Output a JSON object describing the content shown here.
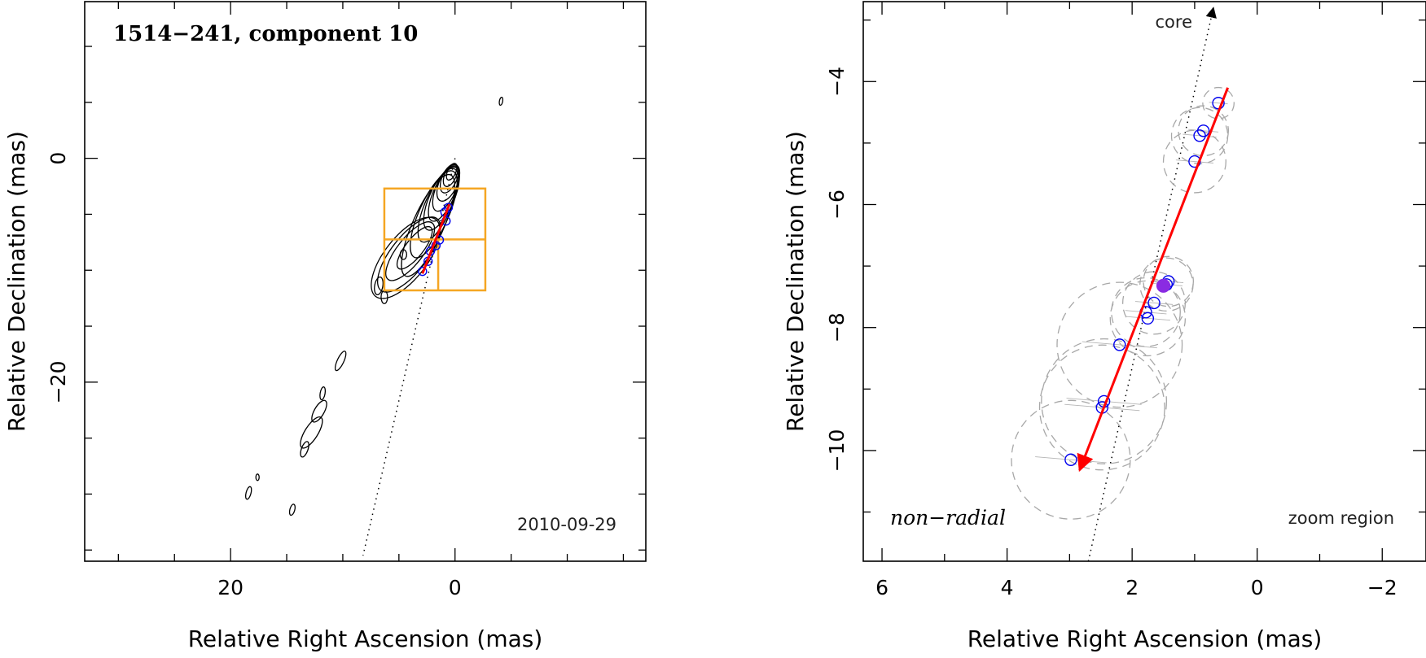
{
  "chart_data": [
    {
      "type": "scatter",
      "panel": "left",
      "title": "1514−241, component 10",
      "date_label": "2010-09-29",
      "xlabel": "Relative Right Ascension (mas)",
      "ylabel": "Relative Declination (mas)",
      "xlim": [
        33,
        -17
      ],
      "ylim": [
        -36,
        14
      ],
      "x_ticks": [
        20,
        0
      ],
      "x_tick_labels": [
        "20",
        "0"
      ],
      "y_ticks": [
        0,
        -20
      ],
      "y_tick_labels": [
        "0",
        "−20"
      ],
      "zoom_box": {
        "x": [
          6.3,
          -2.7
        ],
        "y": [
          -2.7,
          -11.8
        ]
      },
      "components": [
        {
          "x": 1.4,
          "y": -7.3
        },
        {
          "x": 0.8,
          "y": -5.6
        },
        {
          "x": 0.9,
          "y": -4.8
        },
        {
          "x": 1.7,
          "y": -7.8
        },
        {
          "x": 2.4,
          "y": -9.2
        },
        {
          "x": 2.9,
          "y": -10.1
        },
        {
          "x": 2.2,
          "y": -8.3
        },
        {
          "x": 0.6,
          "y": -4.4
        }
      ],
      "fit_line": [
        [
          0.5,
          -4.1
        ],
        [
          2.9,
          -10.3
        ]
      ],
      "core_direction": [
        [
          0,
          0
        ],
        [
          8.2,
          -35.5
        ]
      ]
    },
    {
      "type": "scatter",
      "panel": "right",
      "labels": {
        "core": "core",
        "mode": "non−radial",
        "region": "zoom region"
      },
      "xlabel": "Relative Right Ascension (mas)",
      "ylabel": "Relative Declination (mas)",
      "xlim": [
        6.3,
        -2.7
      ],
      "ylim": [
        -11.8,
        -2.7
      ],
      "x_ticks": [
        6,
        4,
        2,
        0,
        -2
      ],
      "x_tick_labels": [
        "6",
        "4",
        "2",
        "0",
        "−2"
      ],
      "y_ticks": [
        -4,
        -6,
        -8,
        -10
      ],
      "y_tick_labels": [
        "−4",
        "−6",
        "−8",
        "−10"
      ],
      "components": [
        {
          "x": 0.62,
          "y": -4.35,
          "fwhm": 0.5
        },
        {
          "x": 0.86,
          "y": -4.8,
          "fwhm": 0.8
        },
        {
          "x": 0.92,
          "y": -4.88,
          "fwhm": 0.9
        },
        {
          "x": 1.0,
          "y": -5.3,
          "fwhm": 1.0
        },
        {
          "x": 1.42,
          "y": -7.25,
          "fwhm": 0.8
        },
        {
          "x": 1.45,
          "y": -7.3,
          "fwhm": 0.85
        },
        {
          "x": 1.65,
          "y": -7.6,
          "fwhm": 1.0
        },
        {
          "x": 1.78,
          "y": -7.75,
          "fwhm": 1.1
        },
        {
          "x": 1.75,
          "y": -7.85,
          "fwhm": 1.2
        },
        {
          "x": 2.2,
          "y": -8.28,
          "fwhm": 2.0
        },
        {
          "x": 2.45,
          "y": -9.2,
          "fwhm": 2.0
        },
        {
          "x": 2.48,
          "y": -9.3,
          "fwhm": 2.0
        },
        {
          "x": 2.98,
          "y": -10.15,
          "fwhm": 1.9
        }
      ],
      "reference_component": {
        "x": 1.5,
        "y": -7.32
      },
      "fit_line": [
        [
          0.47,
          -4.1
        ],
        [
          2.84,
          -10.32
        ]
      ],
      "core_direction": [
        [
          2.7,
          -11.8
        ],
        [
          0.7,
          -2.8
        ]
      ]
    }
  ]
}
